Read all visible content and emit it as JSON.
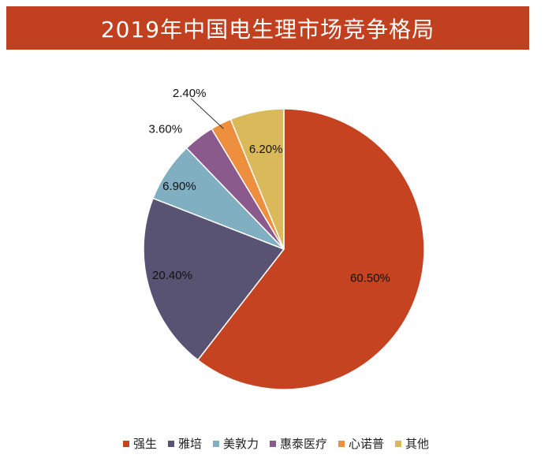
{
  "chart_data": {
    "type": "pie",
    "title": "2019年中国电生理市场竞争格局",
    "categories": [
      "强生",
      "雅培",
      "美敦力",
      "惠泰医疗",
      "心诺普",
      "其他"
    ],
    "values": [
      60.5,
      20.4,
      6.9,
      3.6,
      2.4,
      6.2
    ],
    "data_labels": [
      "60.50%",
      "20.40%",
      "6.90%",
      "3.60%",
      "2.40%",
      "6.20%"
    ],
    "colors": [
      "#C54321",
      "#585273",
      "#7FAFC1",
      "#8B5A8C",
      "#EE8F3E",
      "#D9B95A"
    ],
    "legend_position": "bottom",
    "start_angle": "12 o'clock",
    "direction": "clockwise"
  }
}
